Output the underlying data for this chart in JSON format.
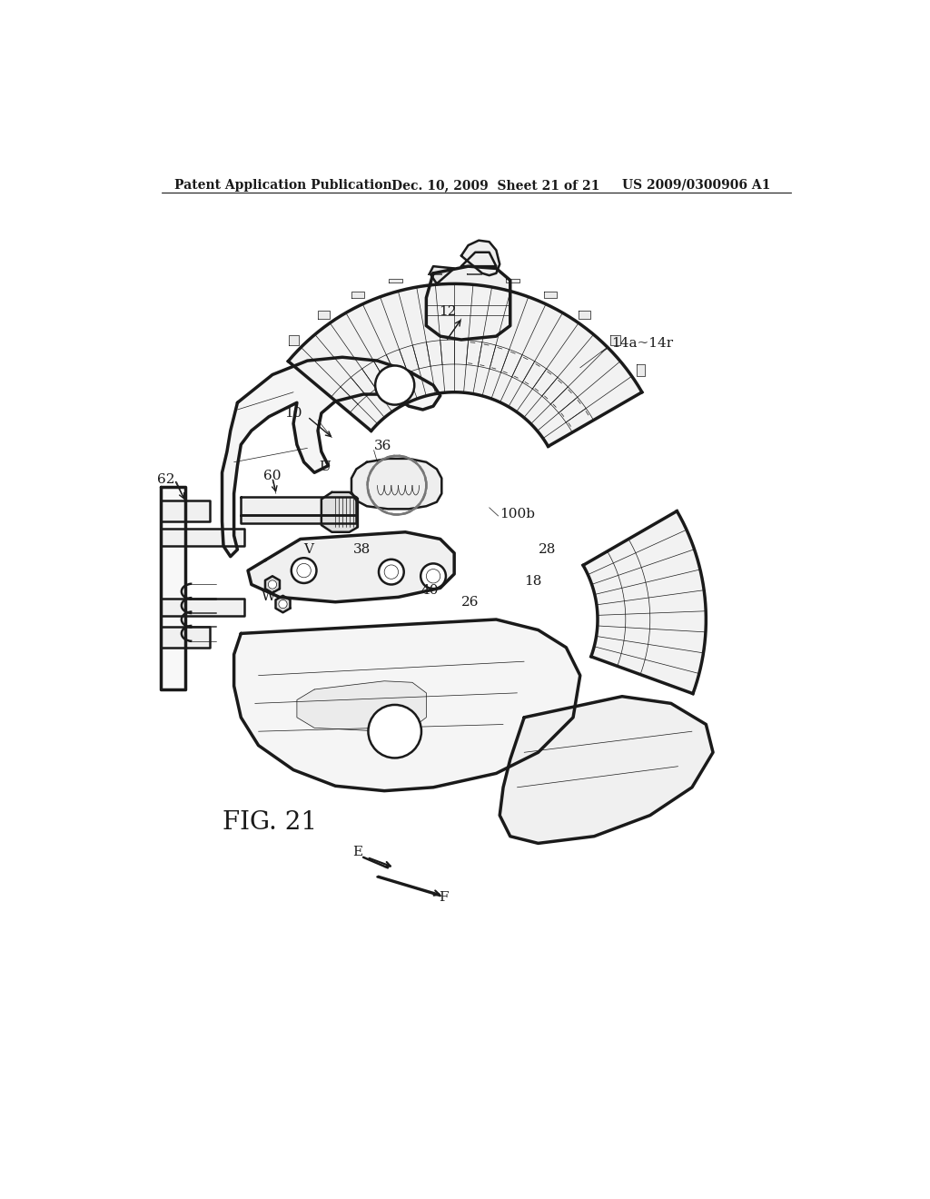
{
  "bg_color": "#ffffff",
  "line_color": "#1a1a1a",
  "header_left": "Patent Application Publication",
  "header_mid": "Dec. 10, 2009  Sheet 21 of 21",
  "header_right": "US 2009/0300906 A1",
  "fig_label": "FIG. 21",
  "lw_main": 1.8,
  "lw_thick": 2.5,
  "lw_thin": 0.9,
  "lw_hair": 0.5
}
